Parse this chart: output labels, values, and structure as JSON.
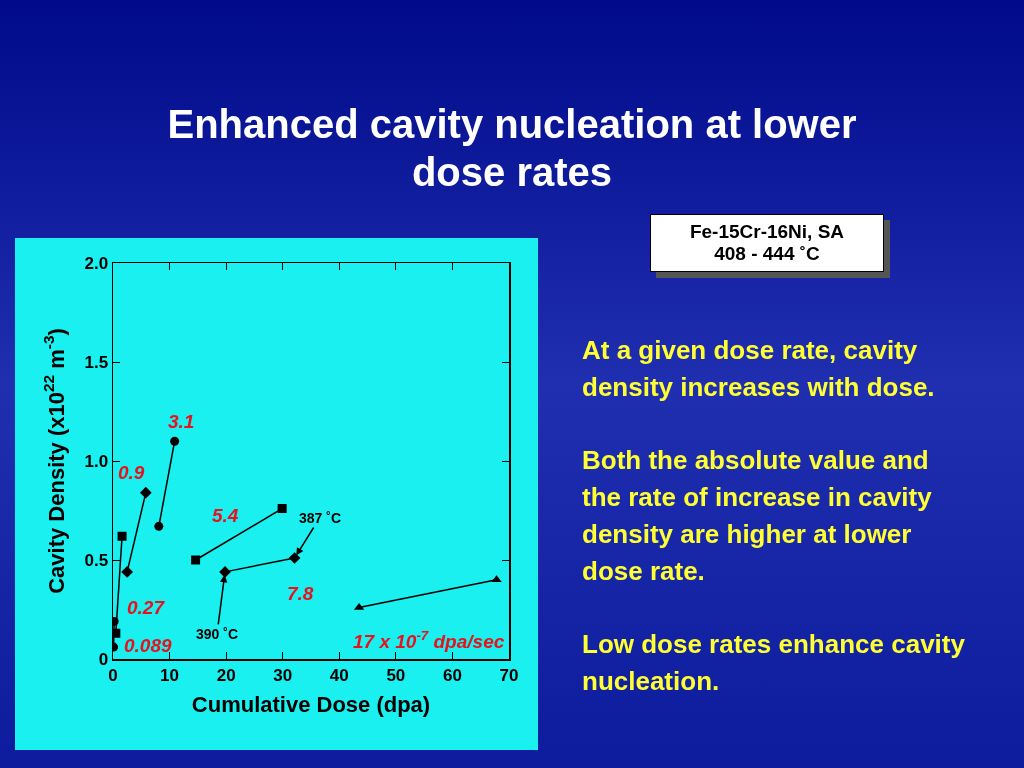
{
  "chart_data": {
    "type": "line",
    "title": "Enhanced cavity nucleation at lower dose rates",
    "xlabel": "Cumulative Dose (dpa)",
    "ylabel": "Cavity Density (x10$^{22}$ m$^{-3}$)",
    "xlim": [
      0,
      70
    ],
    "xticks": [
      0,
      10,
      20,
      30,
      40,
      50,
      60,
      70
    ],
    "ylim": [
      0,
      2
    ],
    "yticks": [
      0,
      0.5,
      {
        "value": 1,
        "label": "1.0"
      },
      1.5,
      {
        "value": 2,
        "label": "2.0"
      }
    ],
    "grid": false,
    "legend": false,
    "line_style": "solid",
    "series": [
      {
        "name": "0.089",
        "color": "#000000",
        "marker": "circle",
        "x": [
          0.1,
          0.2
        ],
        "values": [
          0.06,
          0.19
        ]
      },
      {
        "name": "0.27",
        "color": "#000000",
        "marker": "square",
        "x": [
          0.5,
          1.6
        ],
        "values": [
          0.13,
          0.62
        ]
      },
      {
        "name": "0.9",
        "color": "#000000",
        "marker": "diamond",
        "x": [
          2.5,
          5.8
        ],
        "values": [
          0.44,
          0.84
        ]
      },
      {
        "name": "3.1",
        "color": "#000000",
        "marker": "circle",
        "x": [
          8.1,
          10.9
        ],
        "values": [
          0.67,
          1.1
        ]
      },
      {
        "name": "5.4",
        "color": "#000000",
        "marker": "square",
        "x": [
          14.6,
          29.9
        ],
        "values": [
          0.5,
          0.76
        ]
      },
      {
        "name": "7.8",
        "color": "#000000",
        "marker": "diamond",
        "x": [
          19.8,
          32.1
        ],
        "values": [
          0.44,
          0.51
        ]
      },
      {
        "name": "17 x 10$^{-7}$ dpa/sec",
        "color": "#000000",
        "marker": "triangle",
        "x": [
          43.5,
          67.8
        ],
        "values": [
          0.26,
          0.4
        ]
      }
    ],
    "annotations": [
      "Fe-15Cr-16Ni, SA\n408 - 444 ˚C",
      "At a given dose rate, cavity density increases with dose.",
      "Both the absolute value and the rate of increase in cavity density are higher at lower dose rate.",
      "Low dose rates enhance cavity nucleation.",
      {
        "text": "387 ˚C",
        "x": 32.1,
        "y": 0.51
      },
      {
        "text": "390 ˚C",
        "x": 19.8,
        "y": 0.44
      }
    ]
  }
}
